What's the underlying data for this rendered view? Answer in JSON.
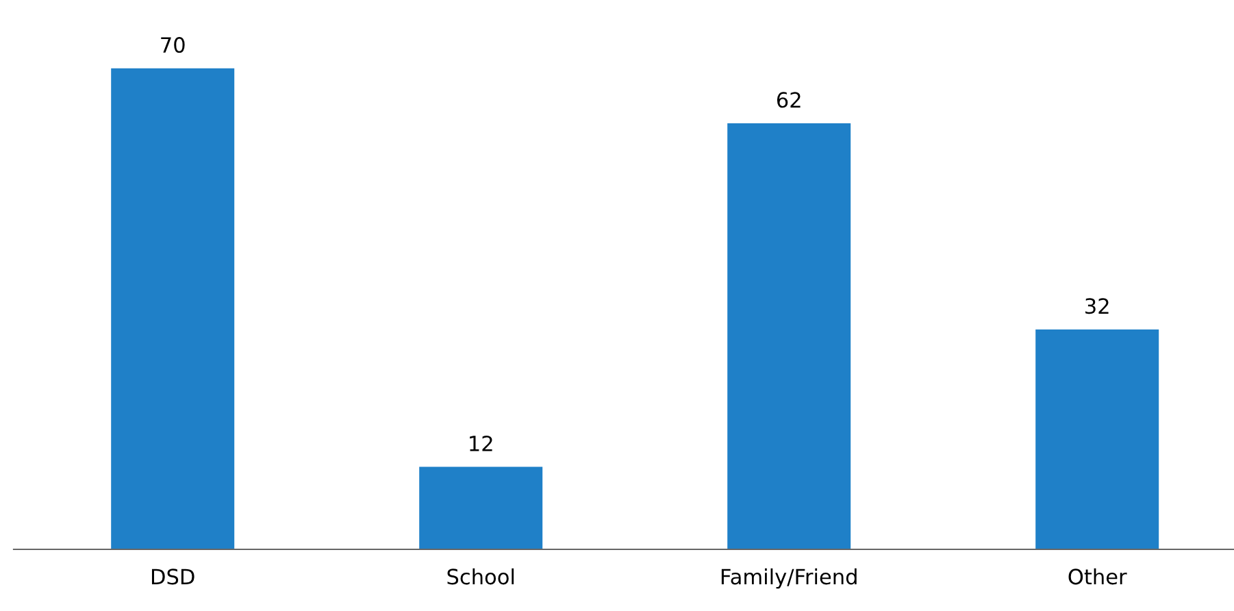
{
  "chart_data": {
    "type": "bar",
    "categories": [
      "DSD",
      "School",
      "Family/Friend",
      "Other"
    ],
    "values": [
      70,
      12,
      62,
      32
    ],
    "color": "#1f80c8",
    "data_labels": true,
    "grid": false,
    "legend": false
  }
}
